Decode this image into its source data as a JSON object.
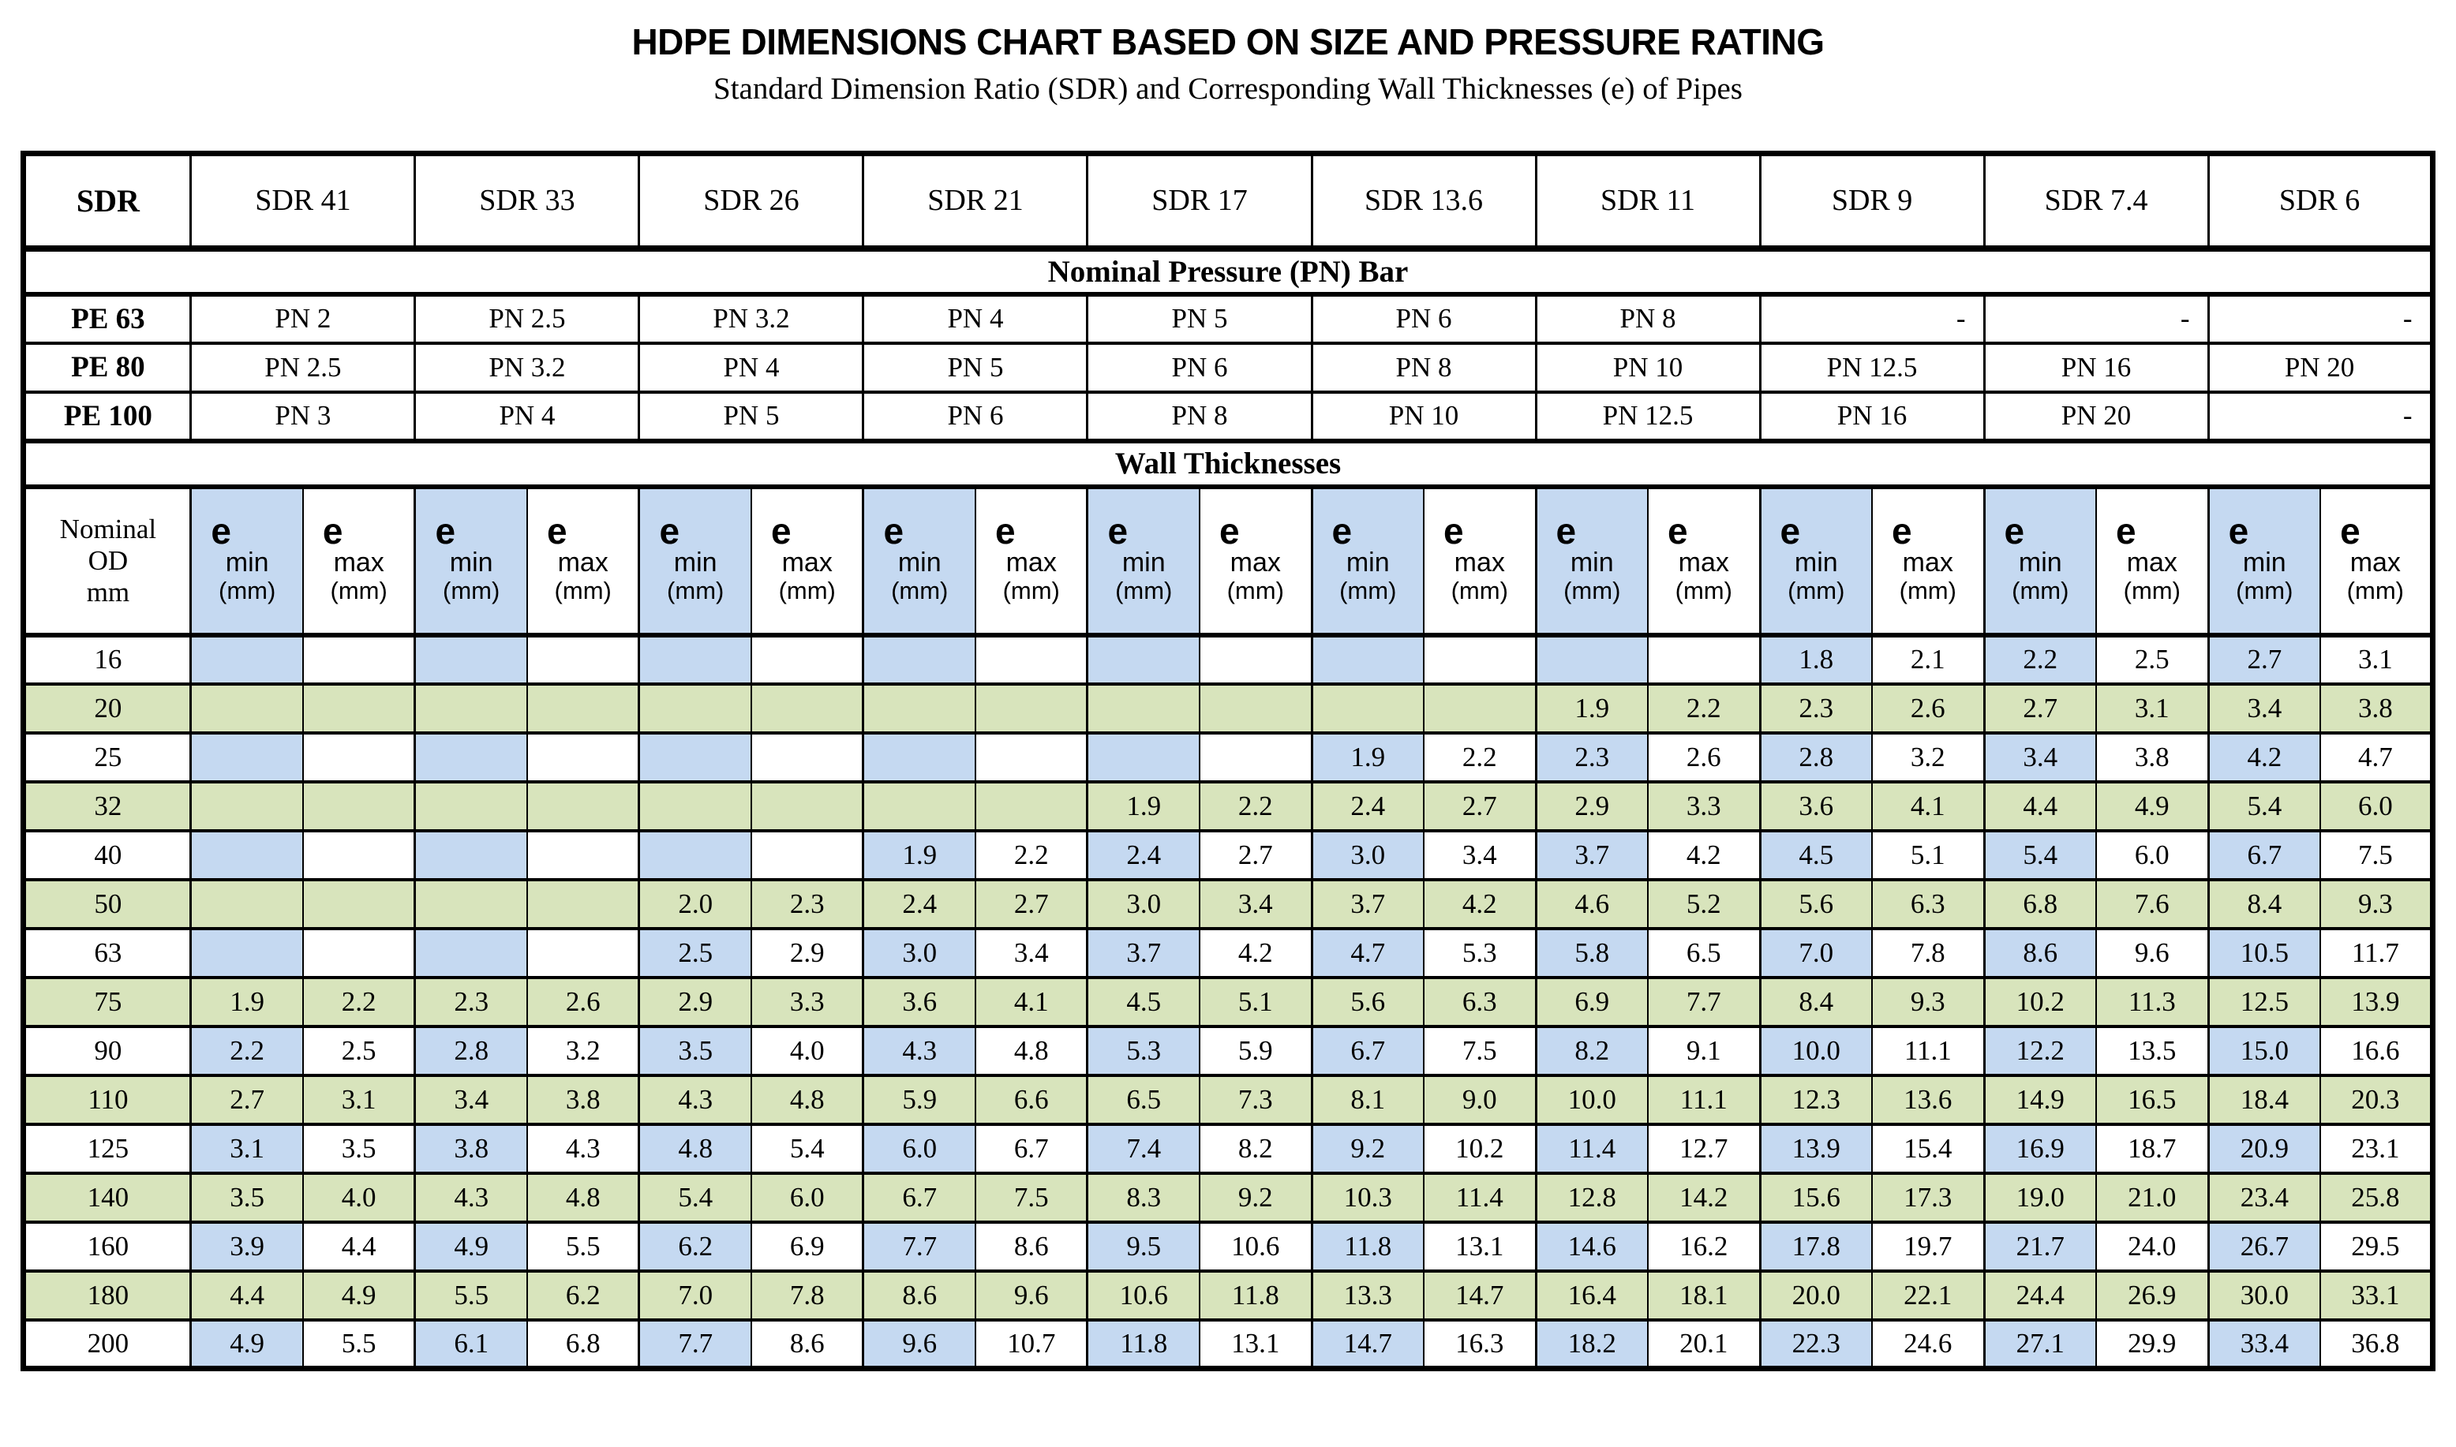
{
  "page": {
    "title": "HDPE DIMENSIONS CHART BASED ON SIZE AND PRESSURE RATING",
    "subtitle": "Standard Dimension Ratio (SDR) and Corresponding Wall Thicknesses (e) of Pipes"
  },
  "colors": {
    "min_column_fill": "#C5D9F1",
    "alt_row_fill": "#D8E4BC",
    "border": "#000000",
    "background": "#FFFFFF"
  },
  "table": {
    "corner_label": "SDR",
    "sdr_columns": [
      "SDR 41",
      "SDR 33",
      "SDR 26",
      "SDR 21",
      "SDR 17",
      "SDR 13.6",
      "SDR 11",
      "SDR 9",
      "SDR 7.4",
      "SDR 6"
    ],
    "pressure_band_label": "Nominal Pressure (PN) Bar",
    "pressure_rows": [
      {
        "material": "PE 63",
        "values": [
          "PN 2",
          "PN 2.5",
          "PN 3.2",
          "PN 4",
          "PN 5",
          "PN 6",
          "PN 8",
          "-",
          "-",
          "-"
        ]
      },
      {
        "material": "PE 80",
        "values": [
          "PN 2.5",
          "PN 3.2",
          "PN 4",
          "PN 5",
          "PN 6",
          "PN 8",
          "PN 10",
          "PN 12.5",
          "PN 16",
          "PN 20"
        ]
      },
      {
        "material": "PE 100",
        "values": [
          "PN 3",
          "PN 4",
          "PN 5",
          "PN 6",
          "PN 8",
          "PN 10",
          "PN 12.5",
          "PN 16",
          "PN 20",
          "-"
        ]
      }
    ],
    "wall_band_label": "Wall Thicknesses",
    "od_header_lines": [
      "Nominal",
      "OD",
      "mm"
    ],
    "sub_headers": {
      "e": "e",
      "min": "min",
      "max": "max",
      "unit": "(mm)"
    },
    "wall_rows": [
      {
        "od": "16",
        "shaded": false,
        "pairs": [
          [
            "",
            ""
          ],
          [
            "",
            ""
          ],
          [
            "",
            ""
          ],
          [
            "",
            ""
          ],
          [
            "",
            ""
          ],
          [
            "",
            ""
          ],
          [
            "",
            ""
          ],
          [
            "1.8",
            "2.1"
          ],
          [
            "2.2",
            "2.5"
          ],
          [
            "2.7",
            "3.1"
          ]
        ]
      },
      {
        "od": "20",
        "shaded": true,
        "pairs": [
          [
            "",
            ""
          ],
          [
            "",
            ""
          ],
          [
            "",
            ""
          ],
          [
            "",
            ""
          ],
          [
            "",
            ""
          ],
          [
            "",
            ""
          ],
          [
            "1.9",
            "2.2"
          ],
          [
            "2.3",
            "2.6"
          ],
          [
            "2.7",
            "3.1"
          ],
          [
            "3.4",
            "3.8"
          ]
        ]
      },
      {
        "od": "25",
        "shaded": false,
        "pairs": [
          [
            "",
            ""
          ],
          [
            "",
            ""
          ],
          [
            "",
            ""
          ],
          [
            "",
            ""
          ],
          [
            "",
            ""
          ],
          [
            "1.9",
            "2.2"
          ],
          [
            "2.3",
            "2.6"
          ],
          [
            "2.8",
            "3.2"
          ],
          [
            "3.4",
            "3.8"
          ],
          [
            "4.2",
            "4.7"
          ]
        ]
      },
      {
        "od": "32",
        "shaded": true,
        "pairs": [
          [
            "",
            ""
          ],
          [
            "",
            ""
          ],
          [
            "",
            ""
          ],
          [
            "",
            ""
          ],
          [
            "1.9",
            "2.2"
          ],
          [
            "2.4",
            "2.7"
          ],
          [
            "2.9",
            "3.3"
          ],
          [
            "3.6",
            "4.1"
          ],
          [
            "4.4",
            "4.9"
          ],
          [
            "5.4",
            "6.0"
          ]
        ]
      },
      {
        "od": "40",
        "shaded": false,
        "pairs": [
          [
            "",
            ""
          ],
          [
            "",
            ""
          ],
          [
            "",
            ""
          ],
          [
            "1.9",
            "2.2"
          ],
          [
            "2.4",
            "2.7"
          ],
          [
            "3.0",
            "3.4"
          ],
          [
            "3.7",
            "4.2"
          ],
          [
            "4.5",
            "5.1"
          ],
          [
            "5.4",
            "6.0"
          ],
          [
            "6.7",
            "7.5"
          ]
        ]
      },
      {
        "od": "50",
        "shaded": true,
        "pairs": [
          [
            "",
            ""
          ],
          [
            "",
            ""
          ],
          [
            "2.0",
            "2.3"
          ],
          [
            "2.4",
            "2.7"
          ],
          [
            "3.0",
            "3.4"
          ],
          [
            "3.7",
            "4.2"
          ],
          [
            "4.6",
            "5.2"
          ],
          [
            "5.6",
            "6.3"
          ],
          [
            "6.8",
            "7.6"
          ],
          [
            "8.4",
            "9.3"
          ]
        ]
      },
      {
        "od": "63",
        "shaded": false,
        "pairs": [
          [
            "",
            ""
          ],
          [
            "",
            ""
          ],
          [
            "2.5",
            "2.9"
          ],
          [
            "3.0",
            "3.4"
          ],
          [
            "3.7",
            "4.2"
          ],
          [
            "4.7",
            "5.3"
          ],
          [
            "5.8",
            "6.5"
          ],
          [
            "7.0",
            "7.8"
          ],
          [
            "8.6",
            "9.6"
          ],
          [
            "10.5",
            "11.7"
          ]
        ]
      },
      {
        "od": "75",
        "shaded": true,
        "pairs": [
          [
            "1.9",
            "2.2"
          ],
          [
            "2.3",
            "2.6"
          ],
          [
            "2.9",
            "3.3"
          ],
          [
            "3.6",
            "4.1"
          ],
          [
            "4.5",
            "5.1"
          ],
          [
            "5.6",
            "6.3"
          ],
          [
            "6.9",
            "7.7"
          ],
          [
            "8.4",
            "9.3"
          ],
          [
            "10.2",
            "11.3"
          ],
          [
            "12.5",
            "13.9"
          ]
        ]
      },
      {
        "od": "90",
        "shaded": false,
        "pairs": [
          [
            "2.2",
            "2.5"
          ],
          [
            "2.8",
            "3.2"
          ],
          [
            "3.5",
            "4.0"
          ],
          [
            "4.3",
            "4.8"
          ],
          [
            "5.3",
            "5.9"
          ],
          [
            "6.7",
            "7.5"
          ],
          [
            "8.2",
            "9.1"
          ],
          [
            "10.0",
            "11.1"
          ],
          [
            "12.2",
            "13.5"
          ],
          [
            "15.0",
            "16.6"
          ]
        ]
      },
      {
        "od": "110",
        "shaded": true,
        "pairs": [
          [
            "2.7",
            "3.1"
          ],
          [
            "3.4",
            "3.8"
          ],
          [
            "4.3",
            "4.8"
          ],
          [
            "5.9",
            "6.6"
          ],
          [
            "6.5",
            "7.3"
          ],
          [
            "8.1",
            "9.0"
          ],
          [
            "10.0",
            "11.1"
          ],
          [
            "12.3",
            "13.6"
          ],
          [
            "14.9",
            "16.5"
          ],
          [
            "18.4",
            "20.3"
          ]
        ]
      },
      {
        "od": "125",
        "shaded": false,
        "pairs": [
          [
            "3.1",
            "3.5"
          ],
          [
            "3.8",
            "4.3"
          ],
          [
            "4.8",
            "5.4"
          ],
          [
            "6.0",
            "6.7"
          ],
          [
            "7.4",
            "8.2"
          ],
          [
            "9.2",
            "10.2"
          ],
          [
            "11.4",
            "12.7"
          ],
          [
            "13.9",
            "15.4"
          ],
          [
            "16.9",
            "18.7"
          ],
          [
            "20.9",
            "23.1"
          ]
        ]
      },
      {
        "od": "140",
        "shaded": true,
        "pairs": [
          [
            "3.5",
            "4.0"
          ],
          [
            "4.3",
            "4.8"
          ],
          [
            "5.4",
            "6.0"
          ],
          [
            "6.7",
            "7.5"
          ],
          [
            "8.3",
            "9.2"
          ],
          [
            "10.3",
            "11.4"
          ],
          [
            "12.8",
            "14.2"
          ],
          [
            "15.6",
            "17.3"
          ],
          [
            "19.0",
            "21.0"
          ],
          [
            "23.4",
            "25.8"
          ]
        ]
      },
      {
        "od": "160",
        "shaded": false,
        "pairs": [
          [
            "3.9",
            "4.4"
          ],
          [
            "4.9",
            "5.5"
          ],
          [
            "6.2",
            "6.9"
          ],
          [
            "7.7",
            "8.6"
          ],
          [
            "9.5",
            "10.6"
          ],
          [
            "11.8",
            "13.1"
          ],
          [
            "14.6",
            "16.2"
          ],
          [
            "17.8",
            "19.7"
          ],
          [
            "21.7",
            "24.0"
          ],
          [
            "26.7",
            "29.5"
          ]
        ]
      },
      {
        "od": "180",
        "shaded": true,
        "pairs": [
          [
            "4.4",
            "4.9"
          ],
          [
            "5.5",
            "6.2"
          ],
          [
            "7.0",
            "7.8"
          ],
          [
            "8.6",
            "9.6"
          ],
          [
            "10.6",
            "11.8"
          ],
          [
            "13.3",
            "14.7"
          ],
          [
            "16.4",
            "18.1"
          ],
          [
            "20.0",
            "22.1"
          ],
          [
            "24.4",
            "26.9"
          ],
          [
            "30.0",
            "33.1"
          ]
        ]
      },
      {
        "od": "200",
        "shaded": false,
        "pairs": [
          [
            "4.9",
            "5.5"
          ],
          [
            "6.1",
            "6.8"
          ],
          [
            "7.7",
            "8.6"
          ],
          [
            "9.6",
            "10.7"
          ],
          [
            "11.8",
            "13.1"
          ],
          [
            "14.7",
            "16.3"
          ],
          [
            "18.2",
            "20.1"
          ],
          [
            "22.3",
            "24.6"
          ],
          [
            "27.1",
            "29.9"
          ],
          [
            "33.4",
            "36.8"
          ]
        ]
      }
    ]
  }
}
